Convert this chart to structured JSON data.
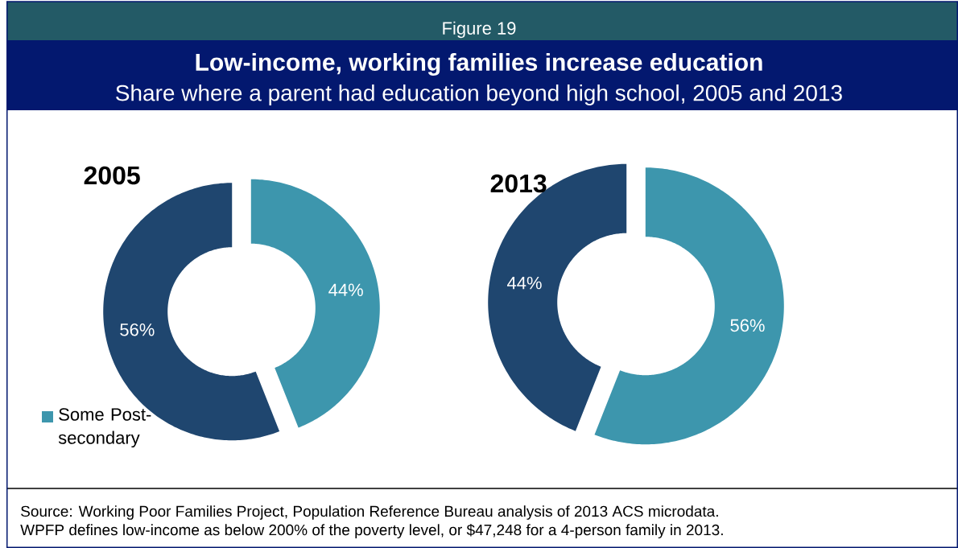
{
  "chart_data": [
    {
      "type": "donut",
      "title": "2005",
      "categories": [
        "Some Post-secondary",
        null
      ],
      "values": [
        44,
        56
      ],
      "colors": [
        "#3d96ad",
        "#1f466f"
      ],
      "value_labels": [
        "44%",
        "56%"
      ],
      "legend": "bottom left",
      "annotations": [
        "Figure 19",
        "Low-income, working families increase education",
        "Share where a parent had education beyond high school, 2005 and 2013",
        "Source: Working Poor Families Project, Population Reference Bureau analysis of 2013 ACS microdata.",
        "WPFP defines low-income as below 200% of the poverty level, or $47,248 for a 4-person family in 2013."
      ]
    },
    {
      "type": "donut",
      "title": "2013",
      "categories": [
        null,
        null
      ],
      "values": [
        56,
        44
      ],
      "colors": [
        "#3d96ad",
        "#1f466f"
      ],
      "value_labels": [
        "56%",
        "44%"
      ]
    }
  ]
}
